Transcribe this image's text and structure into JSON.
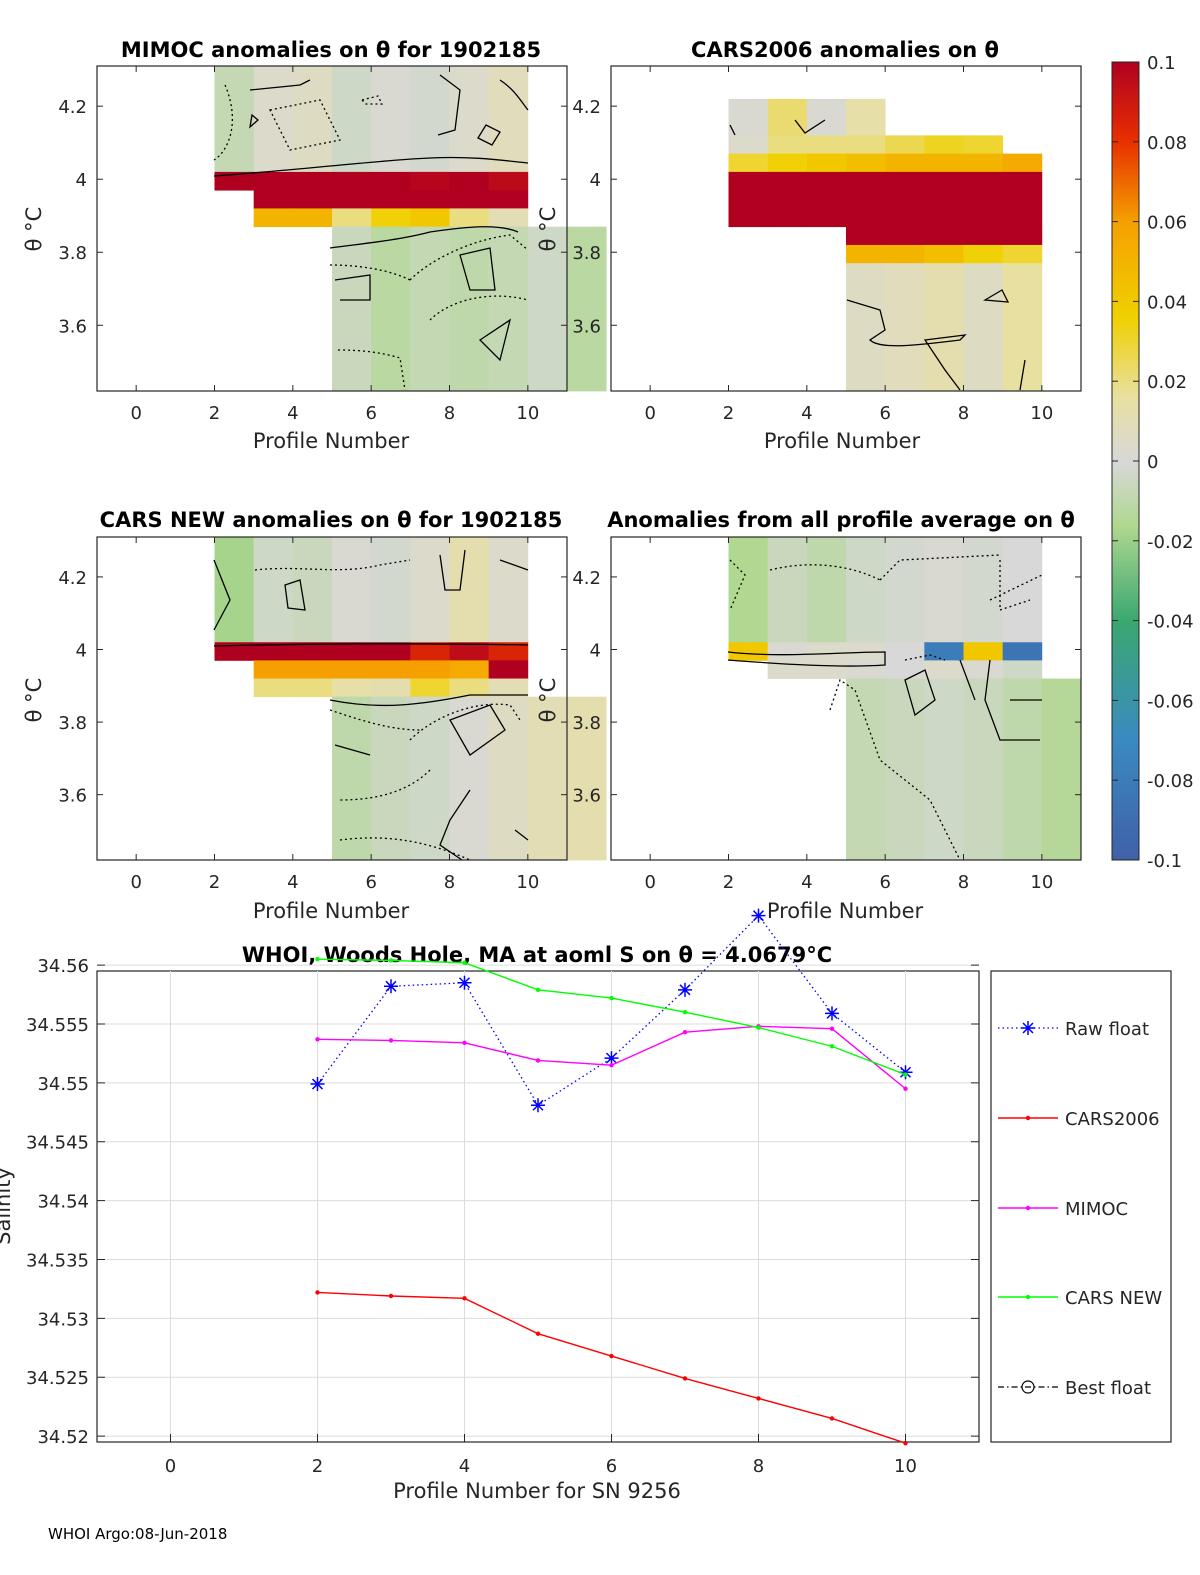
{
  "footer": "WHOI Argo:08-Jun-2018",
  "colors": {
    "raw_float": "#0000ff",
    "cars2006": "#ff0000",
    "mimoc": "#ff00ff",
    "cars_new": "#00ff00",
    "best_float": "#000000"
  },
  "colorbar": {
    "min": -0.1,
    "max": 0.1,
    "tick_labels": [
      "0.1",
      "0.08",
      "0.06",
      "0.04",
      "0.02",
      "0",
      "-0.02",
      "-0.04",
      "-0.06",
      "-0.08",
      "-0.1"
    ],
    "tick_values": [
      0.1,
      0.08,
      0.06,
      0.04,
      0.02,
      0,
      -0.02,
      -0.04,
      -0.06,
      -0.08,
      -0.1
    ]
  },
  "heatmaps": [
    {
      "title": "MIMOC anomalies on θ  for 1902185",
      "xlabel": "Profile Number",
      "ylabel": "θ °C",
      "xlim": [
        -1,
        11
      ],
      "ylim": [
        3.42,
        4.31
      ],
      "xticks": [
        "0",
        "2",
        "4",
        "6",
        "8",
        "10"
      ],
      "yticks": [
        "4.2",
        "4",
        "3.8",
        "3.6"
      ],
      "ytick_values": [
        4.2,
        4.0,
        3.8,
        3.6
      ],
      "rows": [
        {
          "y0": 4.02,
          "y1": 4.31,
          "x0": 2,
          "values": [
            -0.008,
            0.004,
            0.006,
            -0.004,
            0.002,
            -0.002,
            0.004,
            0.008
          ]
        },
        {
          "y0": 3.97,
          "y1": 4.02,
          "x0": 2,
          "values": [
            0.1,
            0.1,
            0.1,
            0.1,
            0.1,
            0.098,
            0.1,
            0.096
          ]
        },
        {
          "y0": 3.92,
          "y1": 3.97,
          "x0": 3,
          "values": [
            0.1,
            0.1,
            0.1,
            0.1,
            0.1,
            0.1,
            0.1
          ]
        },
        {
          "y0": 3.87,
          "y1": 3.92,
          "x0": 3,
          "values": [
            0.05,
            0.05,
            0.02,
            0.035,
            0.04,
            0.02,
            0.01
          ]
        },
        {
          "y0": 3.42,
          "y1": 3.87,
          "x0": 5,
          "values": [
            -0.006,
            -0.012,
            -0.008,
            -0.01,
            -0.008,
            -0.004,
            -0.012
          ]
        }
      ]
    },
    {
      "title": "CARS2006 anomalies on θ",
      "xlabel": "Profile Number",
      "ylabel": "θ °C",
      "xlim": [
        -1,
        11
      ],
      "ylim": [
        3.42,
        4.31
      ],
      "xticks": [
        "0",
        "2",
        "4",
        "6",
        "8",
        "10"
      ],
      "yticks": [
        "4.2",
        "4",
        "3.8",
        "3.6"
      ],
      "ytick_values": [
        4.2,
        4.0,
        3.8,
        3.6
      ],
      "rows": [
        {
          "y0": 4.12,
          "y1": 4.22,
          "x0": 2,
          "values": [
            0.002,
            0.022,
            0.002,
            0.014
          ]
        },
        {
          "y0": 4.07,
          "y1": 4.12,
          "x0": 2,
          "values": [
            0.004,
            0.02,
            0.02,
            0.02,
            0.026,
            0.032,
            0.03
          ]
        },
        {
          "y0": 4.02,
          "y1": 4.07,
          "x0": 2,
          "values": [
            0.03,
            0.035,
            0.04,
            0.045,
            0.05,
            0.05,
            0.05,
            0.055
          ]
        },
        {
          "y0": 3.87,
          "y1": 4.02,
          "x0": 2,
          "values": [
            0.1,
            0.1,
            0.1,
            0.1,
            0.1,
            0.1,
            0.1,
            0.1
          ]
        },
        {
          "y0": 3.82,
          "y1": 3.87,
          "x0": 5,
          "values": [
            0.1,
            0.1,
            0.1,
            0.1,
            0.1
          ]
        },
        {
          "y0": 3.77,
          "y1": 3.82,
          "x0": 5,
          "values": [
            0.05,
            0.05,
            0.045,
            0.035,
            0.03
          ]
        },
        {
          "y0": 3.42,
          "y1": 3.77,
          "x0": 5,
          "values": [
            0.006,
            0.008,
            0.012,
            0.006,
            0.016
          ]
        }
      ]
    },
    {
      "title": "CARS NEW anomalies on θ for 1902185",
      "xlabel": "Profile Number",
      "ylabel": "θ °C",
      "xlim": [
        -1,
        11
      ],
      "ylim": [
        3.42,
        4.31
      ],
      "xticks": [
        "0",
        "2",
        "4",
        "6",
        "8",
        "10"
      ],
      "yticks": [
        "4.2",
        "4",
        "3.8",
        "3.6"
      ],
      "ytick_values": [
        4.2,
        4.0,
        3.8,
        3.6
      ],
      "rows": [
        {
          "y0": 4.02,
          "y1": 4.31,
          "x0": 2,
          "values": [
            -0.018,
            -0.004,
            -0.006,
            0.002,
            -0.002,
            0.004,
            0.012,
            0.004
          ]
        },
        {
          "y0": 3.97,
          "y1": 4.02,
          "x0": 2,
          "values": [
            0.1,
            0.1,
            0.1,
            0.1,
            0.1,
            0.085,
            0.095,
            0.085
          ]
        },
        {
          "y0": 3.92,
          "y1": 3.97,
          "x0": 3,
          "values": [
            0.06,
            0.06,
            0.06,
            0.06,
            0.06,
            0.055,
            0.1
          ]
        },
        {
          "y0": 3.87,
          "y1": 3.92,
          "x0": 3,
          "values": [
            0.02,
            0.02,
            0.014,
            0.012,
            0.03,
            0.02,
            0.01
          ]
        },
        {
          "y0": 3.42,
          "y1": 3.87,
          "x0": 5,
          "values": [
            -0.01,
            -0.006,
            -0.004,
            0.002,
            0.006,
            0.01,
            0.012
          ]
        }
      ]
    },
    {
      "title": "Anomalies from all profile average on θ",
      "xlabel": "Profile Number",
      "ylabel": "θ °C",
      "xlim": [
        -1,
        11
      ],
      "ylim": [
        3.42,
        4.31
      ],
      "xticks": [
        "0",
        "2",
        "4",
        "6",
        "8",
        "10"
      ],
      "yticks": [
        "4.2",
        "4",
        "3.8",
        "3.6"
      ],
      "ytick_values": [
        4.2,
        4.0,
        3.8,
        3.6
      ],
      "rows": [
        {
          "y0": 4.02,
          "y1": 4.31,
          "x0": 2,
          "values": [
            -0.016,
            -0.006,
            -0.01,
            -0.004,
            -0.002,
            0.002,
            -0.002,
            0.0
          ]
        },
        {
          "y0": 3.97,
          "y1": 4.02,
          "x0": 2,
          "values": [
            0.04,
            0.002,
            0.004,
            0.004,
            0.0,
            -0.08,
            0.04,
            -0.085
          ]
        },
        {
          "y0": 3.92,
          "y1": 3.97,
          "x0": 3,
          "values": [
            0.004,
            0.004,
            0.002,
            0.0,
            0.004,
            0.002,
            -0.004
          ]
        },
        {
          "y0": 3.42,
          "y1": 3.92,
          "x0": 5,
          "values": [
            -0.008,
            -0.006,
            -0.004,
            -0.006,
            -0.01,
            -0.014
          ]
        }
      ]
    }
  ],
  "chart_data": {
    "type": "line",
    "title": "WHOI, Woods Hole, MA at aoml S on θ = 4.0679°C",
    "xlabel": "Profile Number for SN 9256",
    "ylabel": "Salinity",
    "xlim": [
      -1,
      11
    ],
    "ylim": [
      34.5195,
      34.5595
    ],
    "xticks": [
      0,
      2,
      4,
      6,
      8,
      10
    ],
    "yticks": [
      34.52,
      34.525,
      34.53,
      34.535,
      34.54,
      34.545,
      34.55,
      34.555,
      34.56
    ],
    "ytick_labels": [
      "34.52",
      "34.525",
      "34.53",
      "34.535",
      "34.54",
      "34.545",
      "34.55",
      "34.555",
      "34.56"
    ],
    "grid": true,
    "legend_position": "right-outside",
    "series": [
      {
        "name": "Raw float",
        "x": [
          2,
          3,
          4,
          5,
          6,
          7,
          8,
          9,
          10
        ],
        "values": [
          34.5499,
          34.5582,
          34.5585,
          34.5481,
          34.5521,
          34.5579,
          34.5642,
          34.5559,
          34.5509
        ]
      },
      {
        "name": "CARS2006",
        "x": [
          2,
          3,
          4,
          5,
          6,
          7,
          8,
          9,
          10
        ],
        "values": [
          34.5322,
          34.5319,
          34.5317,
          34.5287,
          34.5268,
          34.5249,
          34.5232,
          34.5215,
          34.5194
        ]
      },
      {
        "name": "MIMOC",
        "x": [
          2,
          3,
          4,
          5,
          6,
          7,
          8,
          9,
          10
        ],
        "values": [
          34.5537,
          34.5536,
          34.5534,
          34.5519,
          34.5515,
          34.5543,
          34.5548,
          34.5546,
          34.5495
        ]
      },
      {
        "name": "CARS NEW",
        "x": [
          2,
          3,
          4,
          5,
          6,
          7,
          8,
          9,
          10
        ],
        "values": [
          34.5605,
          34.5604,
          34.5602,
          34.5579,
          34.5572,
          34.556,
          34.5547,
          34.5531,
          34.5507
        ]
      },
      {
        "name": "Best float",
        "x": [],
        "values": []
      }
    ]
  }
}
